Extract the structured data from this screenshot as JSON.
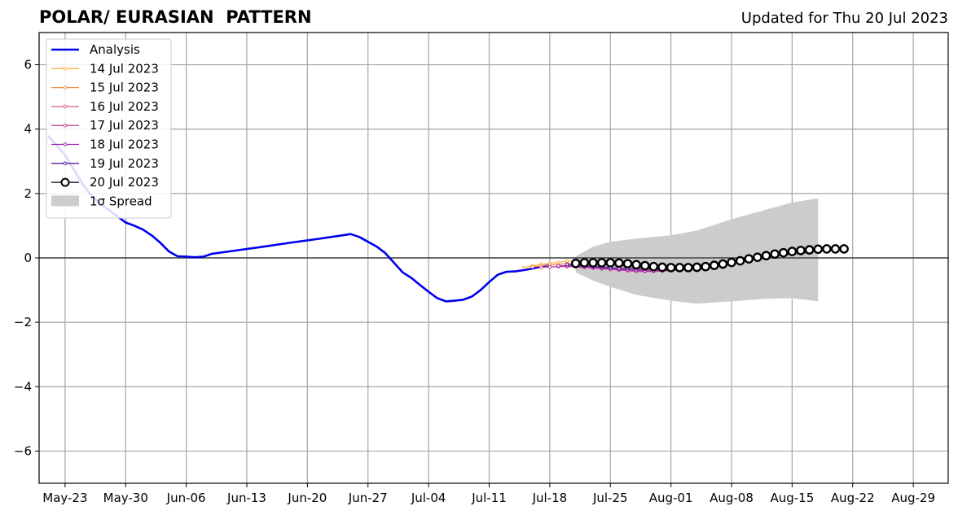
{
  "title": "POLAR/ EURASIAN  PATTERN",
  "updated": "Updated for Thu 20 Jul 2023",
  "chart_data": {
    "type": "line",
    "title": "POLAR/ EURASIAN  PATTERN",
    "xlabel": "",
    "ylabel": "",
    "x_ticks": [
      "May-23",
      "May-30",
      "Jun-06",
      "Jun-13",
      "Jun-20",
      "Jun-27",
      "Jul-04",
      "Jul-11",
      "Jul-18",
      "Jul-25",
      "Aug-01",
      "Aug-08",
      "Aug-15",
      "Aug-22",
      "Aug-29"
    ],
    "y_ticks": [
      "6",
      "4",
      "2",
      "0",
      "−2",
      "−4",
      "−6"
    ],
    "ylim": [
      -7,
      7
    ],
    "grid": true,
    "legend_position": "top-left",
    "legend": [
      "Analysis",
      "14 Jul 2023",
      "15 Jul 2023",
      "16 Jul 2023",
      "17 Jul 2023",
      "18 Jul 2023",
      "19 Jul 2023",
      "20 Jul 2023",
      "1σ Spread"
    ],
    "analysis": {
      "name": "Analysis",
      "color": "#0000ee",
      "points": [
        [
          "2023-05-21",
          3.8
        ],
        [
          "2023-05-22",
          3.5
        ],
        [
          "2023-05-23",
          3.2
        ],
        [
          "2023-05-24",
          2.75
        ],
        [
          "2023-05-25",
          2.3
        ],
        [
          "2023-05-26",
          1.95
        ],
        [
          "2023-05-27",
          1.7
        ],
        [
          "2023-05-28",
          1.5
        ],
        [
          "2023-05-29",
          1.3
        ],
        [
          "2023-05-30",
          1.1
        ],
        [
          "2023-05-31",
          1.0
        ],
        [
          "2023-06-01",
          0.88
        ],
        [
          "2023-06-02",
          0.7
        ],
        [
          "2023-06-03",
          0.47
        ],
        [
          "2023-06-04",
          0.2
        ],
        [
          "2023-06-05",
          0.05
        ],
        [
          "2023-06-06",
          0.04
        ],
        [
          "2023-06-07",
          0.02
        ],
        [
          "2023-06-08",
          0.04
        ],
        [
          "2023-06-09",
          0.13
        ],
        [
          "2023-06-12",
          0.24
        ],
        [
          "2023-06-15",
          0.35
        ],
        [
          "2023-06-18",
          0.47
        ],
        [
          "2023-06-21",
          0.58
        ],
        [
          "2023-06-24",
          0.7
        ],
        [
          "2023-06-25",
          0.74
        ],
        [
          "2023-06-26",
          0.65
        ],
        [
          "2023-06-27",
          0.5
        ],
        [
          "2023-06-28",
          0.35
        ],
        [
          "2023-06-29",
          0.15
        ],
        [
          "2023-06-30",
          -0.15
        ],
        [
          "2023-07-01",
          -0.45
        ],
        [
          "2023-07-02",
          -0.62
        ],
        [
          "2023-07-03",
          -0.84
        ],
        [
          "2023-07-04",
          -1.05
        ],
        [
          "2023-07-05",
          -1.25
        ],
        [
          "2023-07-06",
          -1.35
        ],
        [
          "2023-07-07",
          -1.33
        ],
        [
          "2023-07-08",
          -1.3
        ],
        [
          "2023-07-09",
          -1.2
        ],
        [
          "2023-07-10",
          -1.0
        ],
        [
          "2023-07-11",
          -0.75
        ],
        [
          "2023-07-12",
          -0.52
        ],
        [
          "2023-07-13",
          -0.43
        ],
        [
          "2023-07-14",
          -0.42
        ],
        [
          "2023-07-15",
          -0.38
        ],
        [
          "2023-07-16",
          -0.33
        ],
        [
          "2023-07-17",
          -0.27
        ],
        [
          "2023-07-18",
          -0.22
        ]
      ]
    },
    "forecasts": [
      {
        "name": "14 Jul 2023",
        "color": "#ffb347",
        "start": "2023-07-15",
        "values": [
          -0.3,
          -0.25,
          -0.2,
          -0.17,
          -0.13,
          -0.1,
          -0.09
        ]
      },
      {
        "name": "15 Jul 2023",
        "color": "#f08a4b",
        "start": "2023-07-16",
        "values": [
          -0.28,
          -0.25,
          -0.22,
          -0.2,
          -0.18,
          -0.17,
          -0.17,
          -0.18,
          -0.2,
          -0.22,
          -0.25,
          -0.28,
          -0.3,
          -0.32,
          -0.33,
          -0.33,
          -0.32,
          -0.3,
          -0.28,
          -0.25,
          -0.22,
          -0.18,
          -0.14,
          -0.1,
          -0.05,
          0.0,
          0.05,
          0.1,
          0.13,
          0.16,
          0.19,
          0.21,
          0.23
        ]
      },
      {
        "name": "16 Jul 2023",
        "color": "#e0607e",
        "start": "2023-07-17",
        "values": [
          -0.3,
          -0.28,
          -0.26,
          -0.25,
          -0.25,
          -0.26,
          -0.28,
          -0.3,
          -0.32,
          -0.34,
          -0.36,
          -0.37,
          -0.38,
          -0.38,
          -0.37,
          -0.35,
          -0.33,
          -0.3,
          -0.27,
          -0.23,
          -0.19,
          -0.15,
          -0.1,
          -0.05,
          0.0,
          0.04,
          0.08,
          0.11,
          0.14,
          0.17,
          0.19,
          0.2
        ]
      },
      {
        "name": "17 Jul 2023",
        "color": "#c0449a",
        "start": "2023-07-18",
        "values": [
          -0.28,
          -0.27,
          -0.27,
          -0.28,
          -0.3,
          -0.32,
          -0.34,
          -0.36,
          -0.38,
          -0.4,
          -0.42,
          -0.42,
          -0.42,
          -0.41,
          -0.39,
          -0.37,
          -0.34,
          -0.31,
          -0.28,
          -0.24,
          -0.2,
          -0.15,
          -0.1,
          -0.06,
          -0.02,
          0.02,
          0.06,
          0.09,
          0.12,
          0.14,
          0.16
        ]
      },
      {
        "name": "18 Jul 2023",
        "color": "#9a2ab0",
        "start": "2023-07-19",
        "values": [
          -0.25,
          -0.24,
          -0.25,
          -0.27,
          -0.29,
          -0.31,
          -0.33,
          -0.35,
          -0.37,
          -0.39,
          -0.4,
          -0.4,
          -0.39,
          -0.37,
          -0.35,
          -0.32,
          -0.29,
          -0.26,
          -0.22,
          -0.18,
          -0.14,
          -0.1,
          -0.06,
          -0.02,
          0.02,
          0.06,
          0.09,
          0.12,
          0.15,
          0.18
        ]
      },
      {
        "name": "19 Jul 2023",
        "color": "#5b1a9e",
        "start": "2023-07-20",
        "values": [
          -0.2,
          -0.22,
          -0.24,
          -0.26,
          -0.28,
          -0.3,
          -0.32,
          -0.33,
          -0.34,
          -0.35,
          -0.35,
          -0.34,
          -0.33,
          -0.31,
          -0.29,
          -0.27,
          -0.24,
          -0.21,
          -0.17,
          -0.13,
          -0.09,
          -0.05,
          -0.01,
          0.03,
          0.07,
          0.11,
          0.15,
          0.19,
          0.22
        ]
      },
      {
        "name": "20 Jul 2023",
        "color": "#000000",
        "start": "2023-07-21",
        "values": [
          -0.17,
          -0.15,
          -0.15,
          -0.15,
          -0.15,
          -0.16,
          -0.18,
          -0.21,
          -0.24,
          -0.27,
          -0.29,
          -0.3,
          -0.3,
          -0.3,
          -0.29,
          -0.27,
          -0.23,
          -0.19,
          -0.14,
          -0.09,
          -0.03,
          0.02,
          0.07,
          0.12,
          0.16,
          0.2,
          0.23,
          0.25,
          0.27,
          0.28,
          0.28,
          0.28
        ]
      }
    ],
    "spread": {
      "name": "1σ Spread",
      "color": "#cccccc",
      "dates": [
        "2023-07-21",
        "2023-07-23",
        "2023-07-25",
        "2023-07-28",
        "2023-08-01",
        "2023-08-04",
        "2023-08-08",
        "2023-08-12",
        "2023-08-15",
        "2023-08-18"
      ],
      "upper": [
        0.05,
        0.35,
        0.5,
        0.6,
        0.7,
        0.85,
        1.2,
        1.5,
        1.72,
        1.85
      ],
      "lower": [
        -0.45,
        -0.7,
        -0.9,
        -1.15,
        -1.33,
        -1.42,
        -1.35,
        -1.27,
        -1.25,
        -1.35
      ]
    }
  }
}
